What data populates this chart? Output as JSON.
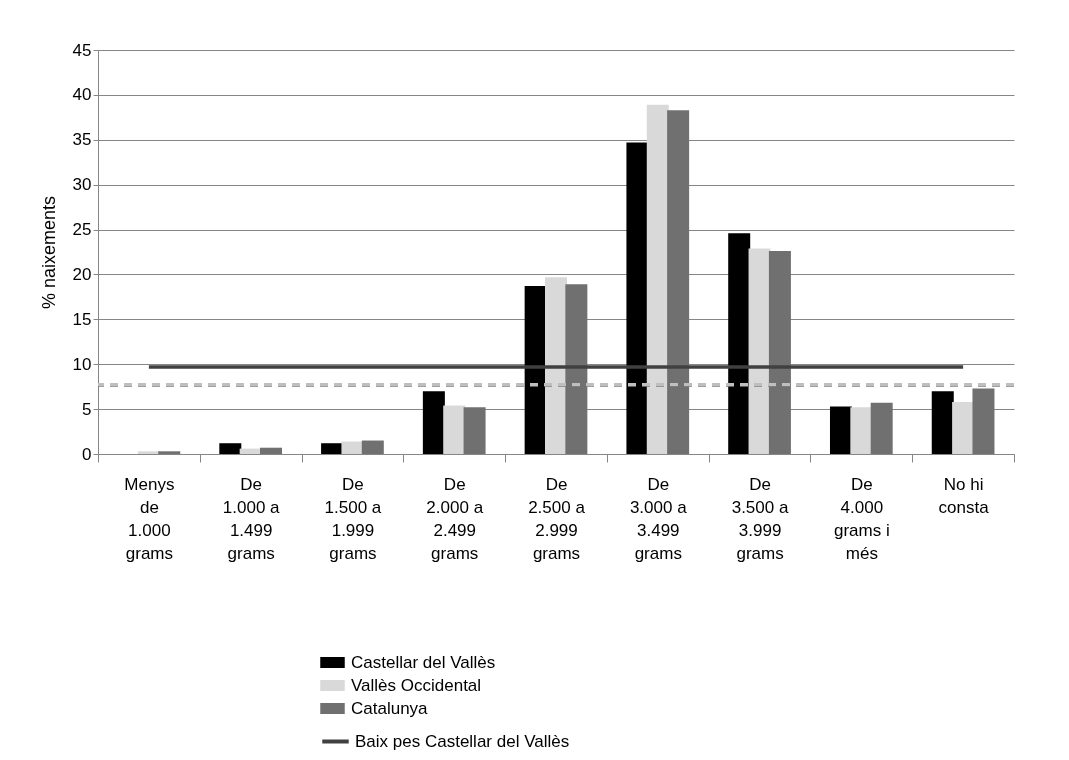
{
  "chart_data": {
    "type": "bar",
    "ylabel": "% naixements",
    "categories": [
      "Menys de 1.000 grams",
      "De 1.000 a 1.499 grams",
      "De 1.500 a 1.999 grams",
      "De 2.000 a 2.499 grams",
      "De 2.500 a 2.999 grams",
      "De 3.000 a 3.499 grams",
      "De 3.500 a 3.999 grams",
      "De 4.000 grams i més",
      "No hi consta"
    ],
    "series": [
      {
        "name": "Castellar del Vallès",
        "color": "#000000",
        "values": [
          0,
          1.2,
          1.2,
          7.0,
          18.7,
          34.7,
          24.6,
          5.3,
          7.0
        ]
      },
      {
        "name": "Vallès Occidental",
        "color": "#d9d9d9",
        "values": [
          0.3,
          0.6,
          1.4,
          5.4,
          19.7,
          38.9,
          22.9,
          5.2,
          5.8
        ]
      },
      {
        "name": "Catalunya",
        "color": "#707070",
        "values": [
          0.3,
          0.7,
          1.5,
          5.2,
          18.9,
          38.3,
          22.6,
          5.7,
          7.3
        ]
      },
      {
        "name": "Baix pes Castellar del Vallès",
        "type": "line",
        "color": "#404040",
        "values": [
          9.7,
          9.7,
          9.7,
          9.7,
          9.7,
          9.7,
          9.7,
          9.7,
          9.7
        ]
      }
    ],
    "ref_lines": [
      {
        "axis": "y",
        "value": 7.7,
        "color": "#000000",
        "line_style": "dashed"
      },
      {
        "axis": "y",
        "value": 7.7,
        "color": "#bfbfbf",
        "line_style": "dashed"
      }
    ],
    "ylim": [
      0,
      45
    ],
    "yticks": [
      0,
      5,
      10,
      15,
      20,
      25,
      30,
      35,
      40,
      45
    ],
    "grid": "y",
    "legend": "bottom",
    "marker": "none"
  }
}
